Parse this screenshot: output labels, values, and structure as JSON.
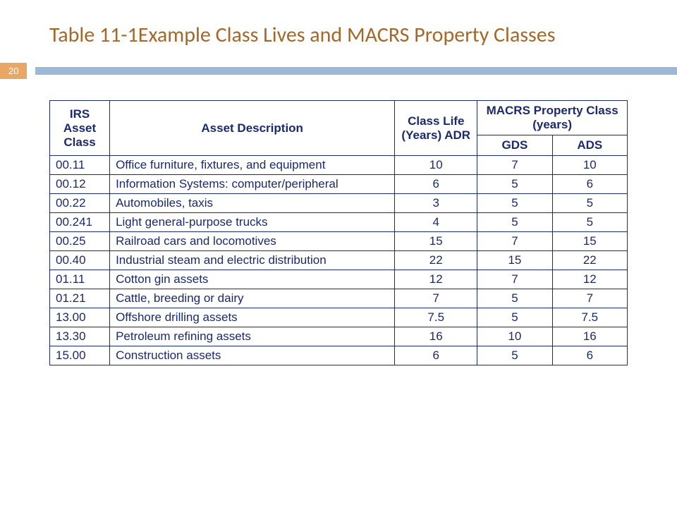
{
  "title": "Table 11-1Example Class Lives and MACRS Property Classes",
  "title_color": "#a5682a",
  "page_number": "20",
  "badge_bg": "#e8a764",
  "bar_color": "#9bb9d4",
  "table": {
    "border_color": "#1a2a6c",
    "header_text_color": "#1a2a6c",
    "cell_text_color": "#1a2a6c",
    "columns": {
      "irs": "IRS Asset Class",
      "desc": "Asset Description",
      "adr": "Class Life (Years) ADR",
      "macrs": "MACRS Property Class (years)",
      "gds": "GDS",
      "ads": "ADS"
    },
    "rows": [
      {
        "irs": "00.11",
        "desc": "Office furniture, fixtures, and equipment",
        "adr": "10",
        "gds": "7",
        "ads": "10"
      },
      {
        "irs": "00.12",
        "desc": "Information Systems: computer/peripheral",
        "adr": "6",
        "gds": "5",
        "ads": "6"
      },
      {
        "irs": "00.22",
        "desc": "Automobiles, taxis",
        "adr": "3",
        "gds": "5",
        "ads": "5"
      },
      {
        "irs": "00.241",
        "desc": "Light general-purpose trucks",
        "adr": "4",
        "gds": "5",
        "ads": "5"
      },
      {
        "irs": "00.25",
        "desc": "Railroad cars and locomotives",
        "adr": "15",
        "gds": "7",
        "ads": "15"
      },
      {
        "irs": "00.40",
        "desc": "Industrial steam and electric distribution",
        "adr": "22",
        "gds": "15",
        "ads": "22"
      },
      {
        "irs": "01.11",
        "desc": "Cotton gin assets",
        "adr": "12",
        "gds": "7",
        "ads": "12"
      },
      {
        "irs": "01.21",
        "desc": "Cattle, breeding or dairy",
        "adr": "7",
        "gds": "5",
        "ads": "7"
      },
      {
        "irs": "13.00",
        "desc": "Offshore drilling assets",
        "adr": "7.5",
        "gds": "5",
        "ads": "7.5"
      },
      {
        "irs": "13.30",
        "desc": "Petroleum refining assets",
        "adr": "16",
        "gds": "10",
        "ads": "16"
      },
      {
        "irs": "15.00",
        "desc": "Construction assets",
        "adr": "6",
        "gds": "5",
        "ads": "6"
      }
    ]
  }
}
